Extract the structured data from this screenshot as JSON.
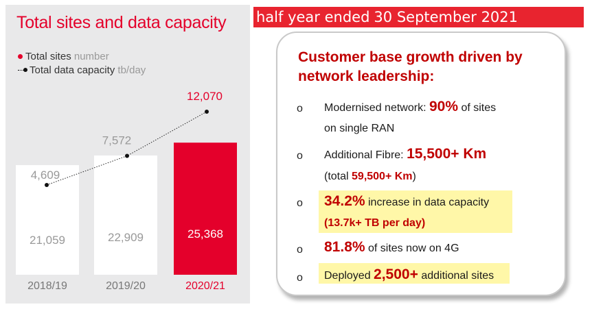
{
  "chart_data": {
    "type": "bar",
    "title": "Total sites and data capacity",
    "categories": [
      "2018/19",
      "2019/20",
      "2020/21"
    ],
    "series": [
      {
        "name": "Total sites",
        "unit": "number",
        "values": [
          21059,
          22909,
          25368
        ],
        "labels": [
          "21,059",
          "22,909",
          "25,368"
        ]
      },
      {
        "name": "Total data capacity",
        "unit": "tb/day",
        "values": [
          4609,
          7572,
          12070
        ],
        "labels": [
          "4,609",
          "7,572",
          "12,070"
        ]
      }
    ],
    "highlight_color": "#e4002b",
    "bar_color": "#ffffff",
    "grid": false,
    "legend": "top-left"
  },
  "banner": {
    "part1": "half year ended",
    "part2": "30 September 2021"
  },
  "card": {
    "heading": "Customer base growth driven by network leadership:",
    "bullet_glyph": "o",
    "items": [
      {
        "line1_pre": "Modernised network: ",
        "line1_big": "90%",
        "line1_post": " of sites",
        "line2": "on single RAN"
      },
      {
        "line1_pre": "Additional Fibre: ",
        "line1_big": "15,500+ Km",
        "line2_pre": "(total ",
        "line2_bold": "59,500+ Km",
        "line2_post": ")"
      },
      {
        "line1_big": "34.2%",
        "line1_post": " increase in data capacity",
        "line2_bold": "(13.7k+ TB per day)"
      },
      {
        "line1_big": "81.8%",
        "line1_post": " of sites now on 4G"
      },
      {
        "line1_pre": "Deployed ",
        "line1_big": "2,500+",
        "line1_post": " additional sites"
      }
    ]
  }
}
